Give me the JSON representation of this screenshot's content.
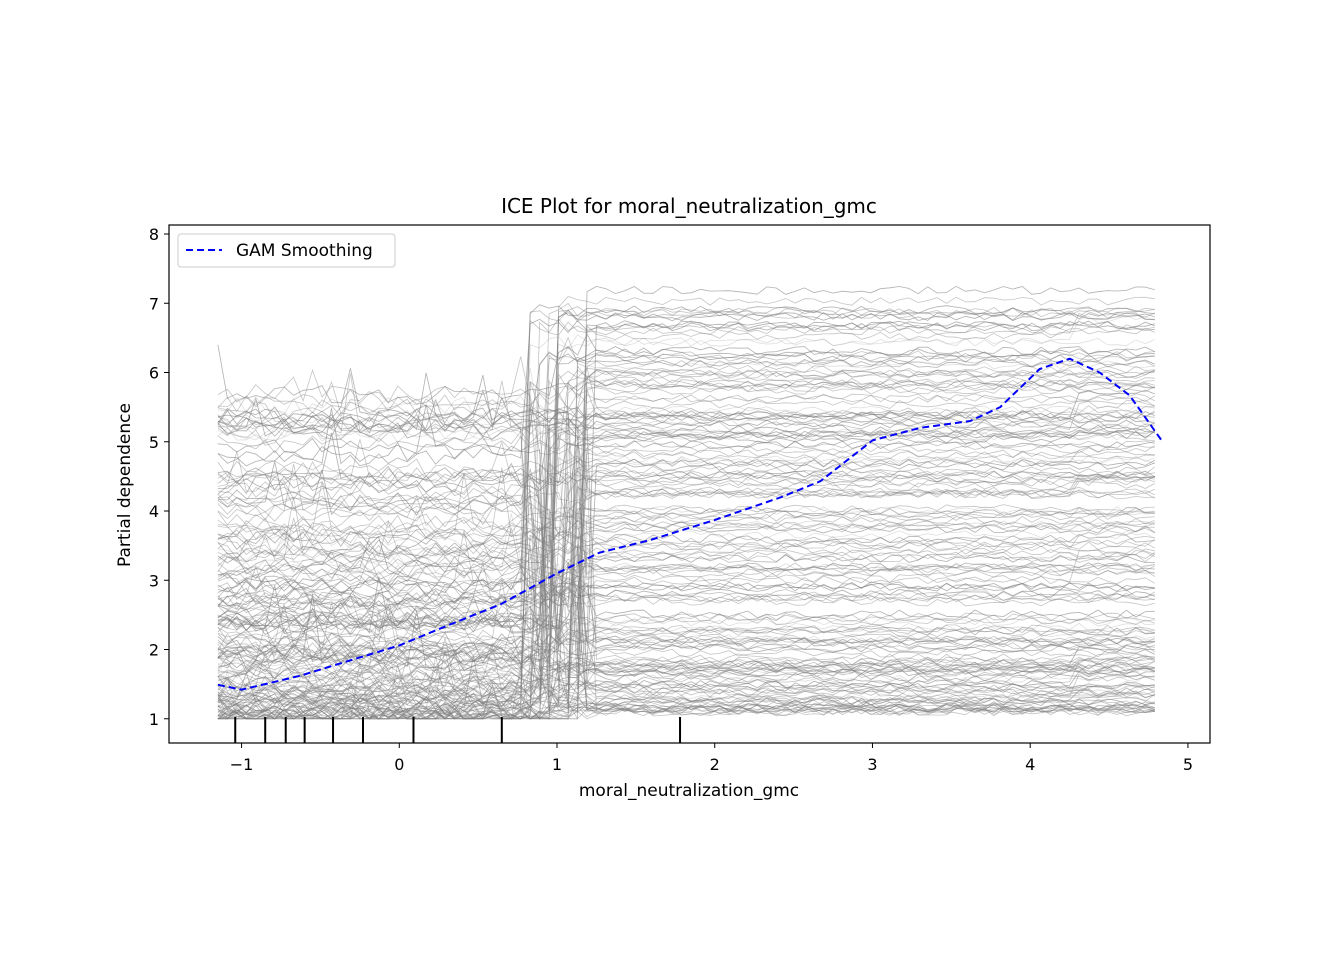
{
  "chart_data": {
    "type": "line",
    "title": "ICE Plot for moral_neutralization_gmc",
    "xlabel": "moral_neutralization_gmc",
    "ylabel": "Partial dependence",
    "xlim": [
      -1.46,
      5.14
    ],
    "ylim": [
      0.65,
      8.13
    ],
    "xticks": [
      -1,
      0,
      1,
      2,
      3,
      4,
      5
    ],
    "xtick_labels": [
      "−1",
      "0",
      "1",
      "2",
      "3",
      "4",
      "5"
    ],
    "yticks": [
      1,
      2,
      3,
      4,
      5,
      6,
      7,
      8
    ],
    "ytick_labels": [
      "1",
      "2",
      "3",
      "4",
      "5",
      "6",
      "7",
      "8"
    ],
    "grid": false,
    "legend": {
      "placement": "top-left",
      "entries": [
        "GAM Smoothing"
      ]
    },
    "series": [
      {
        "name": "GAM Smoothing",
        "color": "#0000ff",
        "style": "dashed",
        "x": [
          -1.15,
          -1.0,
          -0.63,
          0.0,
          0.32,
          0.64,
          1.0,
          1.27,
          1.59,
          2.0,
          2.42,
          2.67,
          3.0,
          3.3,
          3.62,
          3.81,
          4.06,
          4.25,
          4.44,
          4.63,
          4.83
        ],
        "y": [
          1.49,
          1.42,
          1.62,
          2.06,
          2.36,
          2.65,
          3.1,
          3.4,
          3.58,
          3.87,
          4.2,
          4.43,
          5.02,
          5.2,
          5.3,
          5.5,
          6.05,
          6.2,
          6.0,
          5.67,
          5.03
        ]
      }
    ],
    "ice_lines": {
      "count": 420,
      "color": "#808080",
      "x_range": [
        -1.15,
        4.83
      ],
      "y_range": [
        1.0,
        7.55
      ]
    },
    "rug": {
      "x": [
        -1.04,
        -0.85,
        -0.72,
        -0.6,
        -0.42,
        -0.23,
        0.09,
        0.65,
        1.78
      ],
      "color": "#000000"
    }
  }
}
